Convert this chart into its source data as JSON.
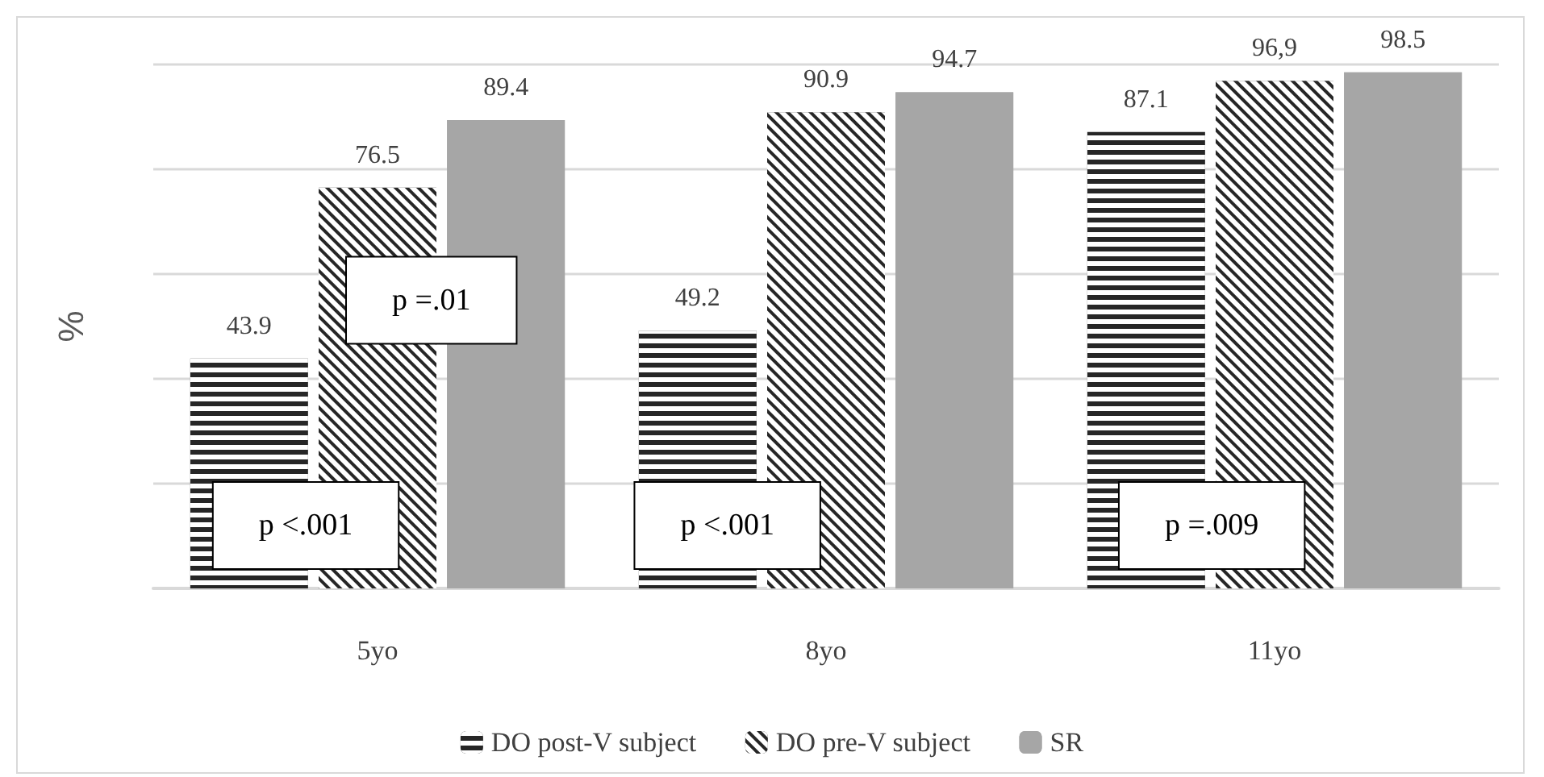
{
  "chart_data": {
    "type": "bar",
    "ylabel": "%",
    "categories": [
      "5yo",
      "8yo",
      "11yo"
    ],
    "series": [
      {
        "name": "DO post-V subject",
        "color": "#262626",
        "values": [
          43.9,
          49.2,
          87.1
        ],
        "value_labels": [
          "43.9",
          "49.2",
          "87.1"
        ]
      },
      {
        "name": "DO pre-V subject",
        "color": "#262626",
        "values": [
          76.5,
          90.9,
          96.9
        ],
        "value_labels": [
          "76.5",
          "90.9",
          "96,9"
        ]
      },
      {
        "name": "SR",
        "color": "#a6a6a6",
        "values": [
          89.4,
          94.7,
          98.5
        ],
        "value_labels": [
          "89.4",
          "94.7",
          "98.5"
        ]
      }
    ],
    "ylim": [
      0,
      100
    ],
    "yticks": [
      {
        "value": 0,
        "label": null
      },
      {
        "value": 20,
        "label": null
      },
      {
        "value": 40,
        "label": null
      },
      {
        "value": 60,
        "label": null
      },
      {
        "value": 80,
        "label": null
      },
      {
        "value": 100,
        "label": null
      }
    ],
    "tick_labels": "x",
    "grid": "y",
    "legend": "bottom",
    "annotations": [
      "p <.001",
      "p =.01",
      "p <.001",
      "p =.009"
    ]
  }
}
